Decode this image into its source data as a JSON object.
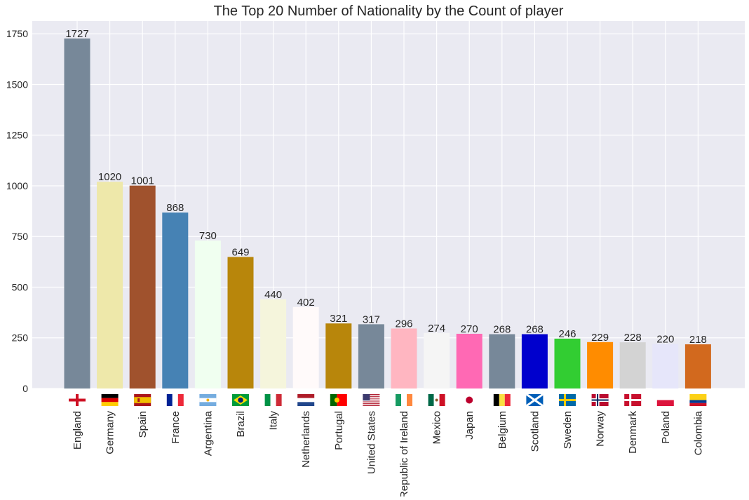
{
  "chart_data": {
    "type": "bar",
    "title": "The Top 20 Number of Nationality by the Count of player",
    "xlabel": "",
    "ylabel": "",
    "ylim": [
      0,
      1813
    ],
    "yticks": [
      0,
      250,
      500,
      750,
      1000,
      1250,
      1500,
      1750
    ],
    "grid": true,
    "categories": [
      "England",
      "Germany",
      "Spain",
      "France",
      "Argentina",
      "Brazil",
      "Italy",
      "Netherlands",
      "Portugal",
      "United States",
      "Republic of Ireland",
      "Mexico",
      "Japan",
      "Belgium",
      "Scotland",
      "Sweden",
      "Norway",
      "Denmark",
      "Poland",
      "Colombia"
    ],
    "values": [
      1727,
      1020,
      1001,
      868,
      730,
      649,
      440,
      402,
      321,
      317,
      296,
      274,
      270,
      268,
      268,
      246,
      229,
      228,
      220,
      218
    ],
    "bar_colors": [
      "#778899",
      "#eee8aa",
      "#a0522d",
      "#4682b4",
      "#f0fff0",
      "#b8860b",
      "#f5f5dc",
      "#fffafa",
      "#b8860b",
      "#778899",
      "#ffb6c1",
      "#f5f5f5",
      "#ff69b4",
      "#778899",
      "#0000cd",
      "#32cd32",
      "#ff8c00",
      "#d3d3d3",
      "#e6e6fa",
      "#d2691e"
    ],
    "flag_icons": [
      "england-flag-icon",
      "germany-flag-icon",
      "spain-flag-icon",
      "france-flag-icon",
      "argentina-flag-icon",
      "brazil-flag-icon",
      "italy-flag-icon",
      "netherlands-flag-icon",
      "portugal-flag-icon",
      "united-states-flag-icon",
      "ireland-flag-icon",
      "mexico-flag-icon",
      "japan-flag-icon",
      "belgium-flag-icon",
      "scotland-flag-icon",
      "sweden-flag-icon",
      "norway-flag-icon",
      "denmark-flag-icon",
      "poland-flag-icon",
      "colombia-flag-icon"
    ],
    "plot_background": "#eaeaf2",
    "grid_color": "#ffffff"
  }
}
